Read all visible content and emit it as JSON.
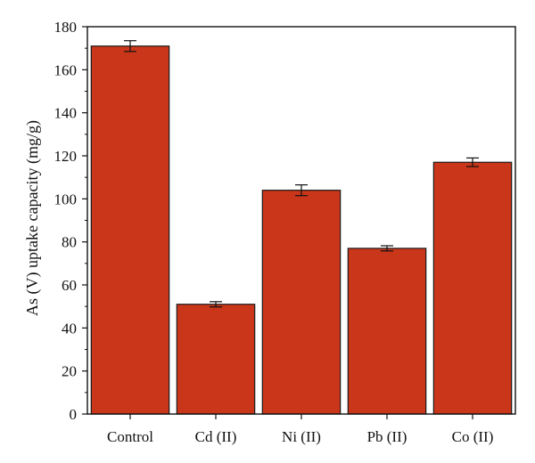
{
  "chart_data": {
    "type": "bar",
    "title": "",
    "xlabel": "",
    "ylabel": "As (V) uptake capacity (mg/g)",
    "categories": [
      "Control",
      "Cd (II)",
      "Ni (II)",
      "Pb (II)",
      "Co (II)"
    ],
    "values": [
      171,
      51,
      104,
      77,
      117
    ],
    "errors": [
      2.5,
      1.2,
      2.5,
      1.2,
      2.0
    ],
    "ylim": [
      0,
      180
    ],
    "yticks": [
      0,
      20,
      40,
      60,
      80,
      100,
      120,
      140,
      160,
      180
    ],
    "grid": false,
    "bar_color": "#C9361A",
    "bar_edge_color": "#1a1a1a",
    "error_bar_color": "#111111"
  }
}
